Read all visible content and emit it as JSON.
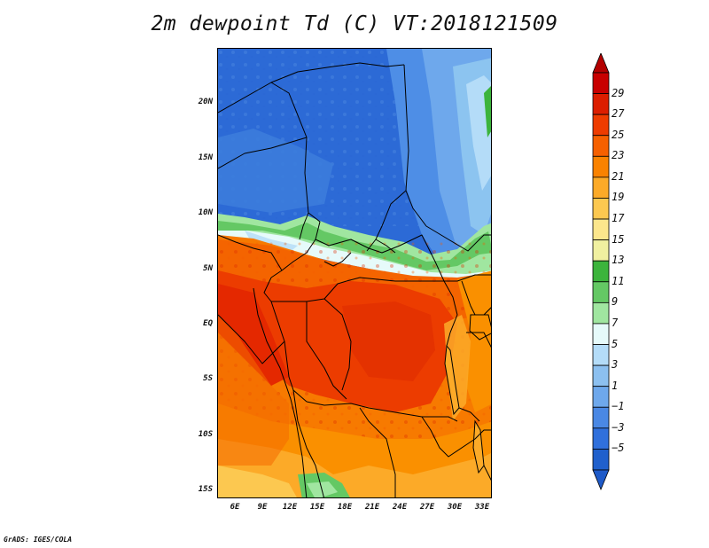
{
  "title": "2m dewpoint Td (C) VT:2018121509",
  "credit": "GrADS: IGES/COLA",
  "lat_labels": [
    "20N",
    "15N",
    "10N",
    "5N",
    "EQ",
    "5S",
    "10S",
    "15S"
  ],
  "lon_labels": [
    "6E",
    "9E",
    "12E",
    "15E",
    "18E",
    "21E",
    "24E",
    "27E",
    "30E",
    "33E"
  ],
  "colorbar": {
    "labels": [
      "29",
      "27",
      "25",
      "23",
      "21",
      "19",
      "17",
      "15",
      "13",
      "11",
      "9",
      "7",
      "5",
      "3",
      "1",
      "−1",
      "−3",
      "−5"
    ],
    "colors": {
      "top_arrow": "#b40000",
      "bins_top_to_bottom": [
        "#c80000",
        "#dc1e00",
        "#ee3c00",
        "#f66000",
        "#fa8200",
        "#fcaa28",
        "#fcc850",
        "#fce68c",
        "#f0f0a0",
        "#3cb43c",
        "#64c864",
        "#a0e6a0",
        "#e6fafa",
        "#b4dcf8",
        "#8cc0f0",
        "#6ea8ec",
        "#4a88e4",
        "#3070dc",
        "#2060cc"
      ],
      "bottom_arrow": "#1e5ac8"
    }
  },
  "map": {
    "region": "Central Africa",
    "lon_range": [
      4,
      34
    ],
    "lat_range": [
      -16,
      25
    ]
  }
}
